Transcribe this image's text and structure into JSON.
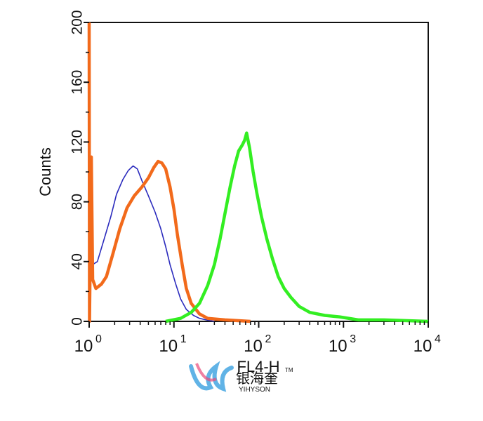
{
  "chart_data": {
    "type": "line",
    "title": "",
    "xlabel": "FL4-H",
    "ylabel": "Counts",
    "xscale": "log",
    "xlim": [
      1,
      10000
    ],
    "ylim": [
      0,
      200
    ],
    "grid": false,
    "x_ticks": [
      {
        "base": "10",
        "exp": "0",
        "value": 1
      },
      {
        "base": "10",
        "exp": "1",
        "value": 10
      },
      {
        "base": "10",
        "exp": "2",
        "value": 100
      },
      {
        "base": "10",
        "exp": "3",
        "value": 1000
      },
      {
        "base": "10",
        "exp": "4",
        "value": 10000
      }
    ],
    "y_ticks": [
      "0",
      "40",
      "80",
      "120",
      "160",
      "200"
    ],
    "y_tick_values": [
      0,
      40,
      80,
      120,
      160,
      200
    ],
    "series": [
      {
        "color": "#2b2bbd",
        "points": [
          [
            1.0,
            0
          ],
          [
            1.02,
            60
          ],
          [
            1.1,
            38
          ],
          [
            1.25,
            40
          ],
          [
            1.5,
            55
          ],
          [
            1.8,
            70
          ],
          [
            2.1,
            85
          ],
          [
            2.5,
            95
          ],
          [
            2.9,
            101
          ],
          [
            3.3,
            104
          ],
          [
            3.7,
            102
          ],
          [
            4.2,
            94
          ],
          [
            5.0,
            84
          ],
          [
            6.0,
            73
          ],
          [
            7.0,
            62
          ],
          [
            8.0,
            50
          ],
          [
            9.0,
            38
          ],
          [
            10.5,
            25
          ],
          [
            12.0,
            15
          ],
          [
            14.0,
            8
          ],
          [
            17.0,
            4
          ],
          [
            20.0,
            2
          ],
          [
            24.0,
            1
          ],
          [
            30.0,
            0
          ]
        ]
      },
      {
        "color": "#f26a1b",
        "points": [
          [
            1.0,
            200
          ],
          [
            1.01,
            0
          ],
          [
            1.06,
            110
          ],
          [
            1.1,
            28
          ],
          [
            1.2,
            22
          ],
          [
            1.4,
            25
          ],
          [
            1.6,
            30
          ],
          [
            1.9,
            45
          ],
          [
            2.3,
            62
          ],
          [
            2.8,
            76
          ],
          [
            3.4,
            84
          ],
          [
            4.2,
            90
          ],
          [
            5.0,
            96
          ],
          [
            5.8,
            103
          ],
          [
            6.5,
            107
          ],
          [
            7.2,
            106
          ],
          [
            8.0,
            102
          ],
          [
            9.0,
            90
          ],
          [
            10.0,
            75
          ],
          [
            11.0,
            58
          ],
          [
            12.5,
            38
          ],
          [
            14.0,
            22
          ],
          [
            16.0,
            12
          ],
          [
            20.0,
            5
          ],
          [
            25.0,
            2
          ],
          [
            40.0,
            1
          ],
          [
            80.0,
            0
          ]
        ]
      },
      {
        "color": "#33ee22",
        "points": [
          [
            8.0,
            0
          ],
          [
            12.0,
            2
          ],
          [
            16.0,
            6
          ],
          [
            20.0,
            12
          ],
          [
            25.0,
            24
          ],
          [
            30.0,
            38
          ],
          [
            35.0,
            55
          ],
          [
            40.0,
            72
          ],
          [
            46.0,
            90
          ],
          [
            52.0,
            104
          ],
          [
            58.0,
            114
          ],
          [
            64.0,
            118
          ],
          [
            68.0,
            121
          ],
          [
            72.0,
            126
          ],
          [
            78.0,
            116
          ],
          [
            86.0,
            100
          ],
          [
            95.0,
            86
          ],
          [
            108.0,
            70
          ],
          [
            125.0,
            55
          ],
          [
            145.0,
            42
          ],
          [
            170.0,
            30
          ],
          [
            200.0,
            22
          ],
          [
            240.0,
            16
          ],
          [
            300.0,
            10
          ],
          [
            400.0,
            6
          ],
          [
            600.0,
            4
          ],
          [
            900.0,
            3
          ],
          [
            1500.0,
            1
          ],
          [
            3000.0,
            1
          ],
          [
            10000.0,
            0
          ]
        ]
      }
    ]
  },
  "watermark": {
    "brand_cn": "银海奎",
    "brand_en": "YIHYSON",
    "tm": "TM"
  }
}
